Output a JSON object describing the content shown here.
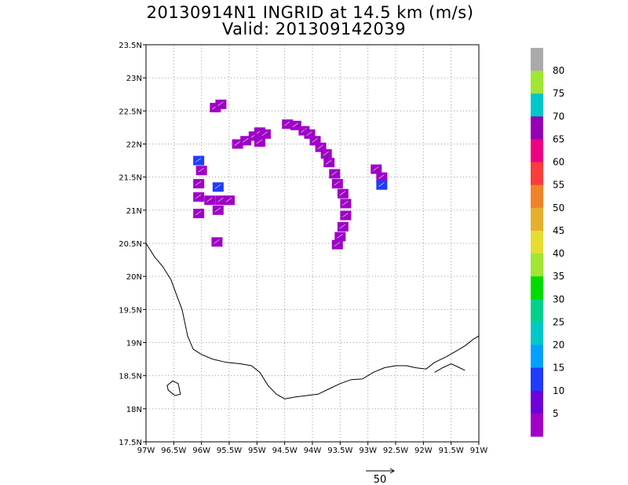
{
  "title_line1": "20130914N1 INGRID at 14.5 km (m/s)",
  "title_line2": "Valid: 201309142039",
  "chart_data": {
    "type": "heatmap",
    "title": "20130914N1 INGRID at 14.5 km (m/s)",
    "subtitle": "Valid: 201309142039",
    "xlim": [
      -97,
      -91
    ],
    "ylim": [
      17.5,
      23.5
    ],
    "x_ticks": [
      "97W",
      "96.5W",
      "96W",
      "95.5W",
      "95W",
      "94.5W",
      "94W",
      "93.5W",
      "93W",
      "92.5W",
      "92W",
      "91.5W",
      "91W"
    ],
    "y_ticks": [
      "17.5N",
      "18N",
      "18.5N",
      "19N",
      "19.5N",
      "20N",
      "20.5N",
      "21N",
      "21.5N",
      "22N",
      "22.5N",
      "23N",
      "23.5N"
    ],
    "grid": true,
    "colorbar": {
      "labels": [
        "5",
        "10",
        "15",
        "20",
        "25",
        "30",
        "35",
        "40",
        "45",
        "50",
        "55",
        "60",
        "65",
        "70",
        "75",
        "80"
      ],
      "colors": [
        "#a000c8",
        "#6e00dc",
        "#1e3cff",
        "#00a0ff",
        "#00c8c8",
        "#00d28c",
        "#00dc00",
        "#a0e632",
        "#e6dc32",
        "#e6af2d",
        "#f08228",
        "#fa3c3c",
        "#f00082",
        "#9600b4",
        "#00c8c8",
        "#a0e632",
        "#aaaaaa"
      ]
    },
    "reference_vector": "50",
    "cells": [
      {
        "lon": -95.75,
        "lat": 22.55,
        "v": 4
      },
      {
        "lon": -95.65,
        "lat": 22.6,
        "v": 4
      },
      {
        "lon": -95.35,
        "lat": 22.0,
        "v": 4
      },
      {
        "lon": -95.2,
        "lat": 22.05,
        "v": 3
      },
      {
        "lon": -95.05,
        "lat": 22.12,
        "v": 4
      },
      {
        "lon": -94.95,
        "lat": 22.18,
        "v": 4
      },
      {
        "lon": -94.85,
        "lat": 22.15,
        "v": 3
      },
      {
        "lon": -94.95,
        "lat": 22.03,
        "v": 4
      },
      {
        "lon": -94.45,
        "lat": 22.3,
        "v": 4
      },
      {
        "lon": -94.3,
        "lat": 22.28,
        "v": 3
      },
      {
        "lon": -94.15,
        "lat": 22.2,
        "v": 4
      },
      {
        "lon": -94.05,
        "lat": 22.15,
        "v": 3
      },
      {
        "lon": -93.95,
        "lat": 22.05,
        "v": 4
      },
      {
        "lon": -93.85,
        "lat": 21.95,
        "v": 3
      },
      {
        "lon": -93.75,
        "lat": 21.85,
        "v": 4
      },
      {
        "lon": -93.7,
        "lat": 21.72,
        "v": 3
      },
      {
        "lon": -93.6,
        "lat": 21.55,
        "v": 4
      },
      {
        "lon": -93.55,
        "lat": 21.4,
        "v": 4
      },
      {
        "lon": -93.45,
        "lat": 21.25,
        "v": 3
      },
      {
        "lon": -93.4,
        "lat": 21.1,
        "v": 4
      },
      {
        "lon": -93.4,
        "lat": 20.92,
        "v": 4
      },
      {
        "lon": -93.45,
        "lat": 20.75,
        "v": 3
      },
      {
        "lon": -93.5,
        "lat": 20.6,
        "v": 4
      },
      {
        "lon": -93.55,
        "lat": 20.48,
        "v": 4
      },
      {
        "lon": -92.85,
        "lat": 21.62,
        "v": 4
      },
      {
        "lon": -92.75,
        "lat": 21.5,
        "v": 4
      },
      {
        "lon": -92.75,
        "lat": 21.38,
        "v": 11
      },
      {
        "lon": -96.05,
        "lat": 21.75,
        "v": 11
      },
      {
        "lon": -96.0,
        "lat": 21.6,
        "v": 4
      },
      {
        "lon": -96.05,
        "lat": 21.4,
        "v": 3
      },
      {
        "lon": -96.05,
        "lat": 21.2,
        "v": 4
      },
      {
        "lon": -95.85,
        "lat": 21.15,
        "v": 4
      },
      {
        "lon": -95.7,
        "lat": 21.35,
        "v": 11
      },
      {
        "lon": -95.65,
        "lat": 21.15,
        "v": 4
      },
      {
        "lon": -95.5,
        "lat": 21.15,
        "v": 4
      },
      {
        "lon": -95.7,
        "lat": 21.0,
        "v": 3
      },
      {
        "lon": -96.05,
        "lat": 20.95,
        "v": 4
      },
      {
        "lon": -95.72,
        "lat": 20.52,
        "v": 4
      }
    ]
  }
}
